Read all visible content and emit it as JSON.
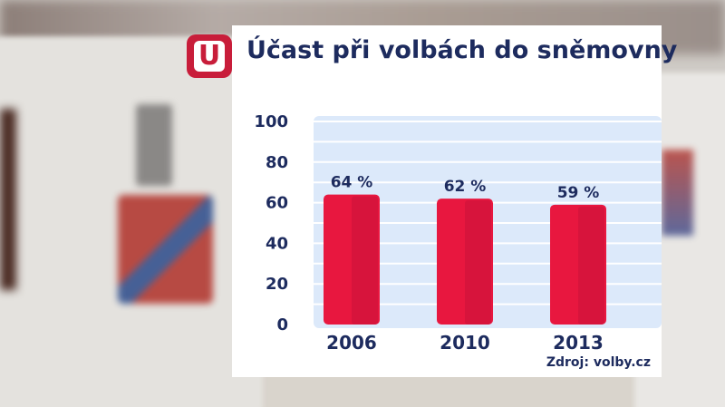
{
  "logo_letter": "U",
  "chart_data": {
    "type": "bar",
    "title": "Účast při volbách do sněmovny",
    "categories": [
      "2006",
      "2010",
      "2013"
    ],
    "values": [
      64,
      62,
      59
    ],
    "data_labels": [
      "64 %",
      "62 %",
      "59 %"
    ],
    "yticks": [
      "0",
      "20",
      "40",
      "60",
      "80",
      "100"
    ],
    "ylim": [
      0,
      100
    ],
    "grid": true,
    "source": "Zdroj: volby.cz",
    "colors": {
      "bar": "#e8173f",
      "bar_shade": "#c8123a",
      "plot_bg": "#dce9fa",
      "text": "#1d2b5e",
      "grid": "#ffffff"
    }
  }
}
